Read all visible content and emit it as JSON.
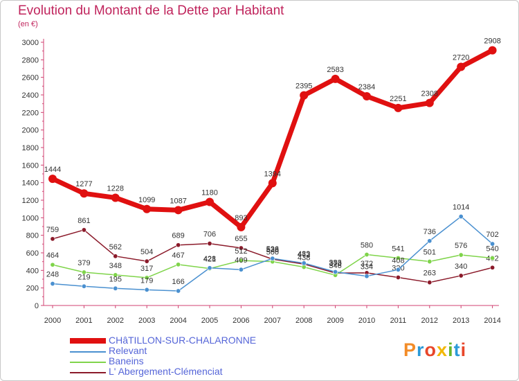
{
  "title": "Evolution du Montant de la Dette par Habitant",
  "subtitle": "(en €)",
  "brand": {
    "name": "Proxiti",
    "colors": [
      "#f28c28",
      "#2b9ad8",
      "#e8462a",
      "#f2b705",
      "#67b52c",
      "#2b9ad8",
      "#e8462a"
    ]
  },
  "chart_data": {
    "type": "line",
    "title": "Evolution du Montant de la Dette par Habitant",
    "subtitle": "(en €)",
    "x": [
      "2000",
      "2001",
      "2002",
      "2003",
      "2004",
      "2005",
      "2006",
      "2007",
      "2008",
      "2009",
      "2010",
      "2011",
      "2012",
      "2013",
      "2014"
    ],
    "ylim": [
      0,
      3000
    ],
    "yticks": [
      0,
      200,
      400,
      600,
      800,
      1000,
      1200,
      1400,
      1600,
      1800,
      2000,
      2200,
      2400,
      2600,
      2800,
      3000
    ],
    "grid": false,
    "legend_position": "bottom-left",
    "series": [
      {
        "name": "CHâTILLON-SUR-CHALARONNE",
        "color": "#e01010",
        "values": [
          1444,
          1277,
          1228,
          1099,
          1087,
          1180,
          893,
          1394,
          2395,
          2583,
          2384,
          2251,
          2308,
          2720,
          2908
        ],
        "labels": [
          "1444",
          "1277",
          "1228",
          "1099",
          "1087",
          "1180",
          "893",
          "1394",
          "2395",
          "2583",
          "2384",
          "2251",
          "2308",
          "2720",
          "2908"
        ]
      },
      {
        "name": "Relevant",
        "color": "#4a90d0",
        "values": [
          248,
          219,
          195,
          179,
          166,
          428,
          409,
          536,
          483,
          383,
          334,
          408,
          736,
          1014,
          702
        ],
        "labels": [
          "248",
          "219",
          "195",
          "179",
          "166",
          "428",
          "409",
          "536",
          "483",
          "383",
          "334",
          "408",
          "736",
          "1014",
          "702"
        ]
      },
      {
        "name": "Baneins",
        "color": "#7fd44a",
        "values": [
          464,
          379,
          348,
          317,
          467,
          421,
          512,
          500,
          438,
          346,
          580,
          541,
          501,
          576,
          540
        ],
        "labels": [
          "464",
          "379",
          "348",
          "317",
          "467",
          "421",
          "512",
          "500",
          "438",
          "346",
          "580",
          "541",
          "501",
          "576",
          "540"
        ]
      },
      {
        "name": "L' Abergement-Clémenciat",
        "color": "#8b1a2a",
        "values": [
          759,
          861,
          562,
          504,
          689,
          706,
          655,
          528,
          472,
          370,
          372,
          320,
          263,
          340,
          432
        ],
        "labels": [
          "759",
          "861",
          "562",
          "504",
          "689",
          "706",
          "655",
          "528",
          "472",
          "370",
          "372",
          "320",
          "263",
          "340",
          "432"
        ]
      }
    ]
  }
}
